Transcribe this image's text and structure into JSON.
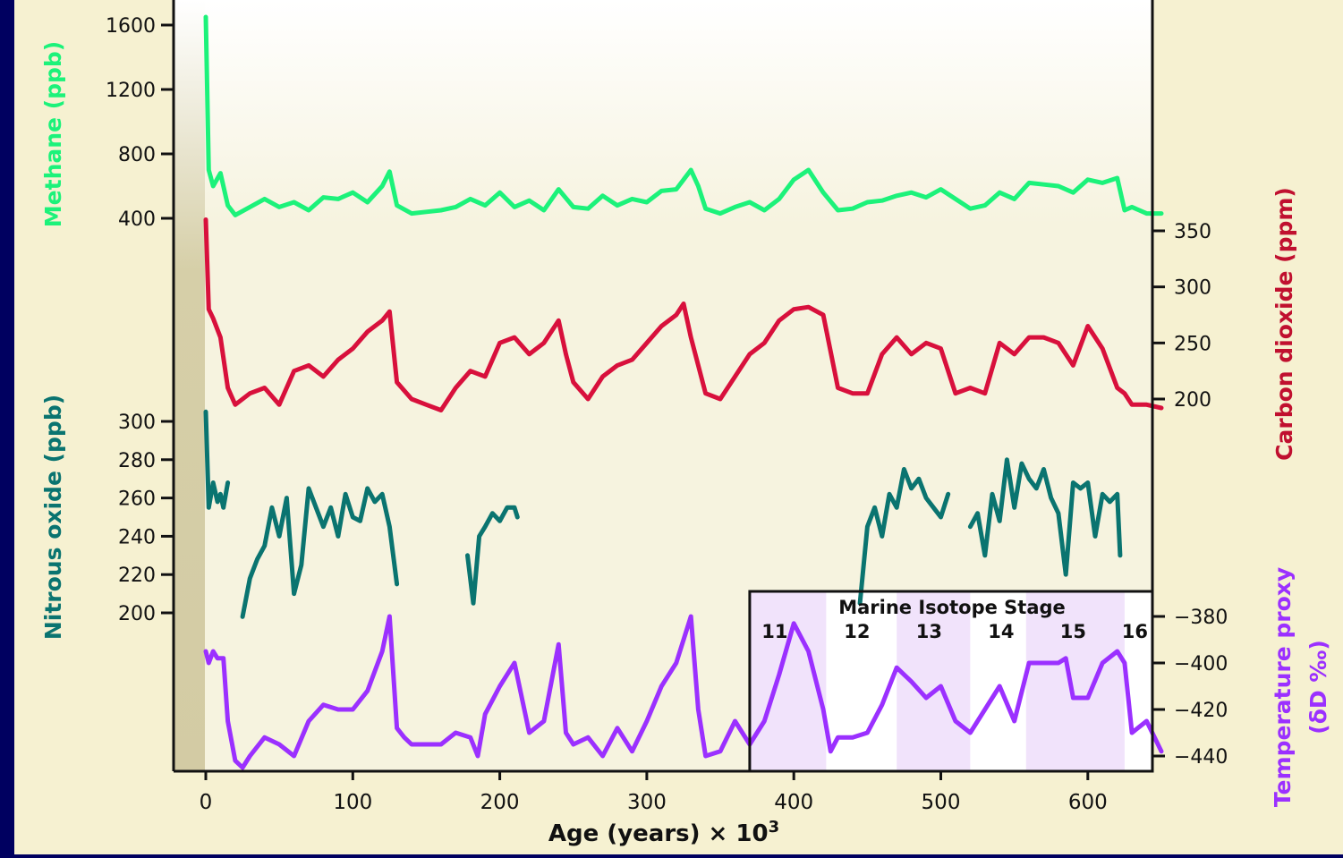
{
  "colors": {
    "background": "#000060",
    "panel": "#f6f1d1",
    "plot_background": "#f6f3df",
    "methane": "#1cf27a",
    "carbon_dioxide": "#d8103c",
    "nitrous_oxide": "#0a7470",
    "temperature": "#9b30ff",
    "isotope_band": "#f1e3fb",
    "axis": "#111111"
  },
  "chart_data": {
    "type": "line",
    "x_axis": {
      "label_main": "Age (years) × 10",
      "label_superscript": "3",
      "range": [
        -22,
        650
      ],
      "ticks": [
        0,
        100,
        200,
        300,
        400,
        500,
        600
      ],
      "tick_labels": [
        "0",
        "100",
        "200",
        "300",
        "400",
        "500",
        "600"
      ]
    },
    "axes": {
      "methane": {
        "label": "Methane (ppb)",
        "ticks": [
          400,
          800,
          1200,
          1600
        ],
        "tick_labels": [
          "400",
          "800",
          "1200",
          "1600"
        ]
      },
      "carbon_dioxide": {
        "label": "Carbon dioxide (ppm)",
        "ticks": [
          200,
          250,
          300,
          350
        ],
        "tick_labels": [
          "200",
          "250",
          "300",
          "350"
        ]
      },
      "nitrous_oxide": {
        "label": "Nitrous oxide (ppb)",
        "ticks": [
          200,
          220,
          240,
          260,
          280,
          300
        ],
        "tick_labels": [
          "200",
          "220",
          "240",
          "260",
          "280",
          "300"
        ]
      },
      "temperature": {
        "label_line1": "Temperature proxy",
        "label_line2": "(δD ‰)",
        "ticks": [
          -380,
          -400,
          -420,
          -440
        ],
        "tick_labels": [
          "−380",
          "−400",
          "−420",
          "−440"
        ]
      }
    },
    "series": [
      {
        "name": "Methane (ppb)",
        "axis": "methane",
        "x": [
          0,
          2,
          5,
          10,
          15,
          20,
          30,
          40,
          50,
          60,
          70,
          80,
          90,
          100,
          110,
          120,
          125,
          130,
          140,
          150,
          160,
          170,
          180,
          190,
          200,
          210,
          220,
          230,
          240,
          250,
          260,
          270,
          280,
          290,
          300,
          310,
          320,
          330,
          335,
          340,
          350,
          360,
          370,
          380,
          390,
          400,
          410,
          420,
          430,
          440,
          450,
          460,
          470,
          480,
          490,
          500,
          510,
          520,
          530,
          540,
          550,
          560,
          570,
          580,
          590,
          600,
          610,
          620,
          625,
          630,
          640,
          650
        ],
        "y": [
          1650,
          700,
          600,
          680,
          480,
          420,
          470,
          520,
          470,
          500,
          450,
          530,
          520,
          560,
          500,
          600,
          690,
          480,
          430,
          440,
          450,
          470,
          520,
          480,
          560,
          470,
          510,
          450,
          580,
          470,
          460,
          540,
          480,
          520,
          500,
          570,
          580,
          700,
          600,
          460,
          430,
          470,
          500,
          450,
          520,
          640,
          700,
          560,
          450,
          460,
          500,
          510,
          540,
          560,
          530,
          580,
          520,
          460,
          480,
          560,
          520,
          620,
          610,
          600,
          560,
          640,
          620,
          650,
          450,
          470,
          430,
          430
        ]
      },
      {
        "name": "Carbon dioxide (ppm)",
        "axis": "carbon_dioxide",
        "x": [
          0,
          2,
          5,
          10,
          15,
          20,
          30,
          40,
          50,
          60,
          70,
          80,
          90,
          100,
          110,
          120,
          125,
          130,
          140,
          150,
          160,
          170,
          180,
          190,
          200,
          210,
          220,
          230,
          240,
          245,
          250,
          260,
          270,
          280,
          290,
          300,
          310,
          320,
          325,
          330,
          340,
          350,
          360,
          370,
          380,
          390,
          400,
          410,
          420,
          430,
          440,
          450,
          460,
          470,
          480,
          490,
          500,
          510,
          520,
          530,
          540,
          550,
          560,
          570,
          580,
          590,
          600,
          610,
          620,
          625,
          630,
          640,
          650
        ],
        "y": [
          360,
          280,
          272,
          255,
          210,
          195,
          205,
          210,
          195,
          225,
          230,
          220,
          235,
          245,
          260,
          270,
          278,
          215,
          200,
          195,
          190,
          210,
          225,
          220,
          250,
          255,
          240,
          250,
          270,
          240,
          215,
          200,
          220,
          230,
          235,
          250,
          265,
          275,
          285,
          255,
          205,
          200,
          220,
          240,
          250,
          270,
          280,
          282,
          275,
          210,
          205,
          205,
          240,
          255,
          240,
          250,
          245,
          205,
          210,
          205,
          250,
          240,
          255,
          255,
          250,
          230,
          265,
          245,
          210,
          205,
          195,
          195,
          192
        ]
      },
      {
        "name": "Nitrous oxide (ppb)",
        "axis": "nitrous_oxide",
        "segments": [
          {
            "x": [
              0,
              2,
              5,
              8,
              10,
              12,
              15
            ],
            "y": [
              305,
              255,
              268,
              258,
              262,
              255,
              268
            ]
          },
          {
            "x": [
              25,
              30,
              35,
              40,
              45,
              50,
              55,
              60,
              65,
              70,
              75,
              80,
              85,
              90,
              95,
              100,
              105,
              110,
              115,
              120,
              125,
              130
            ],
            "y": [
              198,
              218,
              228,
              235,
              255,
              240,
              260,
              210,
              225,
              265,
              255,
              245,
              255,
              240,
              262,
              250,
              248,
              265,
              258,
              262,
              245,
              215
            ]
          },
          {
            "x": [
              178,
              182,
              186,
              190,
              195,
              200,
              205,
              210,
              212
            ],
            "y": [
              230,
              205,
              240,
              245,
              252,
              248,
              255,
              255,
              250
            ]
          },
          {
            "x": [
              445,
              450,
              455,
              460,
              465,
              470,
              475,
              480,
              485,
              490,
              495,
              500,
              505
            ],
            "y": [
              205,
              245,
              255,
              240,
              262,
              255,
              275,
              265,
              270,
              260,
              255,
              250,
              262
            ]
          },
          {
            "x": [
              520,
              525,
              530,
              535,
              540,
              545,
              550,
              555,
              560,
              565,
              570,
              575,
              580,
              585,
              590,
              595,
              600,
              605,
              610,
              615,
              620,
              622
            ],
            "y": [
              245,
              252,
              230,
              262,
              248,
              280,
              255,
              278,
              270,
              265,
              275,
              260,
              252,
              220,
              268,
              265,
              268,
              240,
              262,
              258,
              262,
              230
            ]
          }
        ]
      },
      {
        "name": "Temperature proxy (δD ‰)",
        "axis": "temperature",
        "x": [
          0,
          2,
          5,
          8,
          12,
          15,
          20,
          25,
          30,
          40,
          50,
          60,
          70,
          80,
          90,
          100,
          110,
          120,
          125,
          130,
          135,
          140,
          150,
          160,
          170,
          180,
          185,
          190,
          200,
          210,
          220,
          230,
          240,
          245,
          250,
          260,
          270,
          280,
          290,
          300,
          310,
          320,
          330,
          335,
          340,
          350,
          360,
          370,
          380,
          390,
          400,
          410,
          420,
          425,
          430,
          440,
          450,
          460,
          470,
          480,
          490,
          500,
          510,
          520,
          530,
          540,
          550,
          560,
          570,
          580,
          585,
          590,
          600,
          610,
          620,
          625,
          630,
          640,
          650
        ],
        "y": [
          -395,
          -400,
          -395,
          -398,
          -398,
          -425,
          -442,
          -445,
          -440,
          -432,
          -435,
          -440,
          -425,
          -418,
          -420,
          -420,
          -412,
          -395,
          -380,
          -428,
          -432,
          -435,
          -435,
          -435,
          -430,
          -432,
          -440,
          -422,
          -410,
          -400,
          -430,
          -425,
          -392,
          -430,
          -435,
          -432,
          -440,
          -428,
          -438,
          -425,
          -410,
          -400,
          -380,
          -420,
          -440,
          -438,
          -425,
          -435,
          -425,
          -405,
          -383,
          -395,
          -420,
          -438,
          -432,
          -432,
          -430,
          -418,
          -402,
          -408,
          -415,
          -410,
          -425,
          -430,
          -420,
          -410,
          -425,
          -400,
          -400,
          -400,
          -398,
          -415,
          -415,
          -400,
          -395,
          -400,
          -430,
          -425,
          -438
        ]
      }
    ],
    "isotope_stages": {
      "title": "Marine Isotope Stage",
      "labels": [
        "11",
        "12",
        "13",
        "14",
        "15",
        "16"
      ],
      "label_x": [
        387,
        443,
        492,
        541,
        590,
        632
      ],
      "shaded_ranges": [
        [
          370,
          422
        ],
        [
          470,
          520
        ],
        [
          558,
          625
        ]
      ],
      "box_range": [
        370,
        650
      ]
    }
  }
}
